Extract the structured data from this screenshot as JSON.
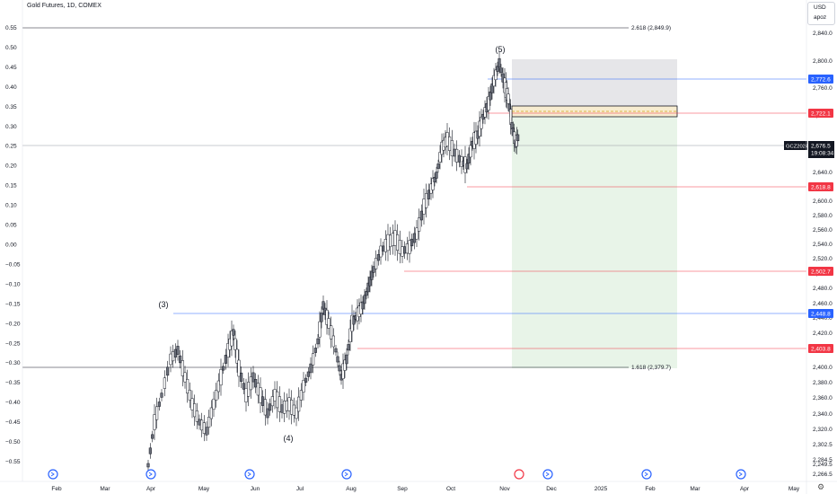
{
  "title": "Gold Futures, 1D, COMEX",
  "currency": "USD",
  "user": "apoz",
  "chart_data": {
    "type": "candlestick",
    "left_axis": {
      "ticks": [
        "0.55",
        "0.50",
        "0.45",
        "0.40",
        "0.35",
        "0.30",
        "0.25",
        "0.20",
        "0.15",
        "0.10",
        "0.05",
        "0.00",
        "−0.05",
        "−0.10",
        "−0.15",
        "−0.20",
        "−0.25",
        "−0.30",
        "−0.35",
        "−0.40",
        "−0.45",
        "−0.50",
        "−0.55"
      ],
      "range": [
        -0.55,
        0.55
      ]
    },
    "right_axis": {
      "ticks": [
        "2,840.0",
        "2,800.0",
        "2,760.0",
        "2,720.0",
        "2,680.0",
        "2,640.0",
        "2,600.0",
        "2,580.0",
        "2,560.0",
        "2,540.0",
        "2,520.0",
        "2,500.0",
        "2,480.0",
        "2,460.0",
        "2,440.0",
        "2,420.0",
        "2,400.0",
        "2,380.0",
        "2,360.0",
        "2,340.0",
        "2,320.0",
        "2,302.5",
        "2,284.5",
        "2,266.5",
        "2,249.5"
      ]
    },
    "x_axis": {
      "ticks": [
        "Feb",
        "Mar",
        "Apr",
        "May",
        "Jun",
        "Jul",
        "Aug",
        "Sep",
        "Oct",
        "Nov",
        "Dec",
        "2025",
        "Feb",
        "Mar",
        "Apr",
        "May"
      ]
    },
    "levels": [
      {
        "label": "2,772.6",
        "color": "#2962ff"
      },
      {
        "label": "2,722.1",
        "color": "#f23645"
      },
      {
        "label": "2,618.8",
        "color": "#f23645"
      },
      {
        "label": "2,502.7",
        "color": "#f23645"
      },
      {
        "label": "2,448.8",
        "color": "#2962ff"
      },
      {
        "label": "2,403.8",
        "color": "#f23645"
      }
    ],
    "current": {
      "symbol": "GCZ2024",
      "price": "2,676.5",
      "countdown": "19:08:34"
    },
    "fib_labels": [
      "2.618 (2,849.9)",
      "1.618 (2,379.7)"
    ],
    "wave_labels": [
      "(3)",
      "(4)",
      "(5)"
    ],
    "position": {
      "stop_zone": "gray",
      "target_zone": "green",
      "entry_color": "#d4a017"
    },
    "candles_summary": {
      "start_month": "Apr",
      "peak_month": "Oct",
      "end_month": "Nov",
      "trend": "up"
    },
    "colors": {
      "up": "#ffffff",
      "down": "#6b6f7a",
      "outline": "#131722",
      "level_red": "#f23645",
      "level_blue": "#2962ff"
    }
  }
}
